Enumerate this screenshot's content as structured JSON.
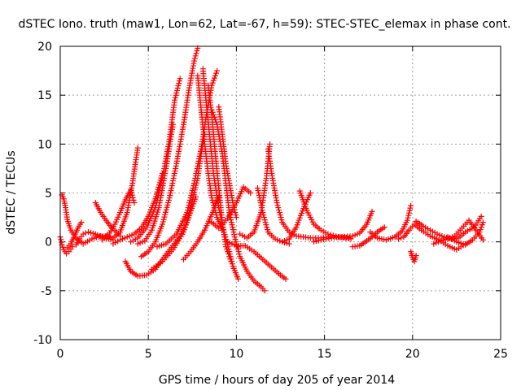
{
  "chart_data": {
    "type": "scatter",
    "title": "dSTEC Iono. truth (maw1, Lon=62, Lat=-67, h=59): STEC-STEC_elemax in phase cont.",
    "xlabel": "GPS time / hours of day 205 of year 2014",
    "ylabel": "dSTEC  / TECUs",
    "xlim": [
      0,
      25
    ],
    "ylim": [
      -10,
      20
    ],
    "xticks": [
      0,
      5,
      10,
      15,
      20,
      25
    ],
    "yticks": [
      -10,
      -5,
      0,
      5,
      10,
      15,
      20
    ],
    "grid": true,
    "marker": "plus",
    "color": "#ff0000",
    "arcs": [
      {
        "x": [
          0.0,
          0.1,
          0.2,
          0.35,
          0.5,
          0.7
        ],
        "y": [
          0.5,
          -0.3,
          -0.8,
          -1.2,
          -1.0,
          -0.5
        ]
      },
      {
        "x": [
          0.1,
          0.2,
          0.3,
          0.4,
          0.6,
          0.9,
          1.3,
          1.8,
          2.3,
          2.8
        ],
        "y": [
          4.8,
          4.4,
          3.5,
          2.3,
          1.2,
          0.4,
          -0.2,
          0.3,
          0.6,
          0.5
        ]
      },
      {
        "x": [
          0.4,
          0.6,
          0.8,
          1.0,
          1.2
        ],
        "y": [
          -0.6,
          -0.2,
          0.6,
          1.4,
          2.0
        ]
      },
      {
        "x": [
          0.9,
          1.1,
          1.3,
          1.6,
          2.0,
          2.5,
          3.0
        ],
        "y": [
          -0.3,
          0.3,
          0.8,
          1.0,
          0.8,
          0.4,
          0.2
        ]
      },
      {
        "x": [
          2.0,
          2.3,
          2.6,
          2.9,
          3.2,
          3.4
        ],
        "y": [
          4.0,
          3.0,
          2.2,
          1.5,
          1.0,
          0.6
        ]
      },
      {
        "x": [
          2.4,
          2.8,
          3.1,
          3.4,
          3.7,
          4.0,
          4.2
        ],
        "y": [
          0.2,
          0.9,
          1.8,
          3.0,
          4.3,
          5.3,
          4.0
        ]
      },
      {
        "x": [
          2.6,
          3.0,
          3.4,
          3.8,
          4.1,
          4.4
        ],
        "y": [
          0.6,
          0.4,
          1.0,
          3.0,
          6.0,
          9.6
        ]
      },
      {
        "x": [
          3.0,
          3.4,
          3.8,
          4.2,
          4.6,
          5.0,
          5.4,
          5.8
        ],
        "y": [
          -0.2,
          0.2,
          0.5,
          0.8,
          1.4,
          2.6,
          4.4,
          7.0
        ]
      },
      {
        "x": [
          3.7,
          4.0,
          4.4,
          4.9,
          5.4,
          5.8,
          6.3,
          6.8,
          7.2,
          7.7
        ],
        "y": [
          -2.0,
          -3.0,
          -3.5,
          -3.4,
          -2.8,
          -1.8,
          -0.6,
          0.6,
          2.0,
          4.6
        ]
      },
      {
        "x": [
          4.0,
          4.4,
          4.9,
          5.4,
          5.8,
          6.2,
          6.5,
          6.8
        ],
        "y": [
          0.0,
          0.4,
          1.5,
          3.5,
          6.5,
          10.5,
          14.5,
          16.7
        ]
      },
      {
        "x": [
          4.4,
          4.8,
          5.2,
          5.6,
          6.0,
          6.4
        ],
        "y": [
          -0.2,
          0.1,
          1.2,
          3.5,
          7.5,
          12.0
        ]
      },
      {
        "x": [
          4.6,
          5.0,
          5.4,
          5.8,
          6.2,
          6.6,
          7.0,
          7.3,
          7.6,
          7.8
        ],
        "y": [
          -1.5,
          -1.0,
          0.0,
          1.8,
          4.5,
          8.0,
          12.0,
          15.5,
          18.5,
          19.8
        ]
      },
      {
        "x": [
          5.2,
          5.8,
          6.4,
          7.0,
          7.4,
          7.8,
          8.0,
          8.2
        ],
        "y": [
          -2.8,
          -2.0,
          -0.8,
          1.0,
          3.4,
          6.5,
          9.0,
          11.0
        ]
      },
      {
        "x": [
          5.5,
          6.0,
          6.6,
          7.2,
          7.6,
          8.0,
          8.3,
          8.6,
          8.9
        ],
        "y": [
          -0.5,
          -0.2,
          0.8,
          3.0,
          6.0,
          9.5,
          13.0,
          16.0,
          17.5
        ]
      },
      {
        "x": [
          7.8,
          8.0,
          8.2,
          8.4,
          8.6,
          8.9,
          9.2
        ],
        "y": [
          17.0,
          13.5,
          10.0,
          7.0,
          4.5,
          2.5,
          1.2
        ]
      },
      {
        "x": [
          8.1,
          8.3,
          8.5,
          8.7,
          9.0,
          9.3,
          9.6,
          9.8,
          10.1
        ],
        "y": [
          17.7,
          14.0,
          10.5,
          7.0,
          3.5,
          1.0,
          -1.0,
          -2.5,
          -3.8
        ]
      },
      {
        "x": [
          8.4,
          8.6,
          8.8,
          9.0,
          9.2,
          9.4,
          9.7
        ],
        "y": [
          16.0,
          13.0,
          9.0,
          5.5,
          2.0,
          -0.5,
          -2.0
        ]
      },
      {
        "x": [
          8.6,
          8.9,
          9.2,
          9.4,
          9.6,
          9.9,
          10.2,
          10.6,
          11.0,
          11.4,
          11.6
        ],
        "y": [
          13.5,
          12.0,
          9.0,
          6.0,
          3.0,
          0.5,
          -1.5,
          -3.0,
          -4.0,
          -4.6,
          -5.0
        ]
      },
      {
        "x": [
          9.0,
          9.2,
          9.4,
          9.6,
          9.8,
          10.0
        ],
        "y": [
          13.8,
          11.0,
          8.0,
          6.0,
          4.0,
          2.5
        ]
      },
      {
        "x": [
          7.0,
          7.4,
          7.8,
          8.2,
          8.6,
          9.0
        ],
        "y": [
          -1.8,
          -1.0,
          0.0,
          1.2,
          2.8,
          4.6
        ]
      },
      {
        "x": [
          8.6,
          9.0,
          9.5,
          10.0,
          10.4,
          10.8
        ],
        "y": [
          2.0,
          1.4,
          2.4,
          4.0,
          5.6,
          5.0
        ]
      },
      {
        "x": [
          9.5,
          10.0,
          10.5,
          11.0,
          11.5,
          12.0,
          12.5,
          12.8
        ],
        "y": [
          0.0,
          -0.4,
          -0.4,
          -1.0,
          -1.8,
          -2.6,
          -3.4,
          -3.8
        ]
      },
      {
        "x": [
          10.2,
          10.6,
          11.0,
          11.4,
          11.7,
          11.9
        ],
        "y": [
          0.8,
          0.4,
          1.0,
          3.0,
          6.5,
          10.0
        ]
      },
      {
        "x": [
          11.8,
          12.0,
          12.3,
          12.6,
          13.0,
          13.4,
          13.8,
          14.2,
          14.8,
          15.5,
          16.5
        ],
        "y": [
          9.5,
          7.0,
          4.0,
          2.0,
          1.0,
          0.6,
          0.5,
          0.4,
          0.4,
          0.6,
          0.3
        ]
      },
      {
        "x": [
          11.2,
          11.5,
          11.8,
          12.2,
          12.6,
          13.0
        ],
        "y": [
          5.5,
          3.0,
          1.0,
          0.3,
          0.0,
          -0.2
        ]
      },
      {
        "x": [
          12.6,
          13.0,
          13.4,
          13.8,
          14.2
        ],
        "y": [
          0.0,
          0.3,
          1.5,
          3.4,
          5.0
        ]
      },
      {
        "x": [
          13.6,
          14.0,
          14.4,
          14.8,
          15.2,
          15.8,
          16.4
        ],
        "y": [
          5.2,
          3.2,
          1.8,
          1.2,
          0.8,
          0.5,
          0.4
        ]
      },
      {
        "x": [
          14.4,
          14.8,
          15.4,
          16.0,
          16.6,
          17.0,
          17.4,
          17.7
        ],
        "y": [
          0.0,
          0.2,
          0.4,
          0.5,
          0.6,
          0.9,
          1.8,
          3.1
        ]
      },
      {
        "x": [
          16.6,
          17.0,
          17.4,
          17.7,
          18.0,
          18.4
        ],
        "y": [
          -0.5,
          -0.4,
          0.1,
          0.5,
          1.0,
          1.5
        ]
      },
      {
        "x": [
          17.6,
          18.0,
          18.5,
          19.0,
          19.4,
          19.7,
          19.9
        ],
        "y": [
          1.0,
          0.4,
          0.2,
          0.5,
          1.1,
          2.2,
          3.7
        ]
      },
      {
        "x": [
          19.9,
          20.0,
          20.1,
          20.2
        ],
        "y": [
          -1.0,
          -1.6,
          -2.0,
          -1.4
        ]
      },
      {
        "x": [
          19.2,
          19.5,
          19.8,
          20.1,
          20.5,
          21.0,
          21.5,
          22.0,
          22.5,
          23.0
        ],
        "y": [
          0.3,
          0.5,
          1.2,
          1.8,
          1.2,
          0.6,
          0.2,
          -0.4,
          -0.8,
          -0.2
        ]
      },
      {
        "x": [
          20.2,
          20.6,
          21.0,
          21.4,
          21.8,
          22.2,
          22.6,
          23.0,
          23.5,
          23.9
        ],
        "y": [
          2.1,
          1.6,
          1.2,
          0.8,
          0.5,
          0.3,
          0.4,
          1.0,
          1.5,
          2.6
        ]
      },
      {
        "x": [
          21.2,
          21.6,
          22.0,
          22.4,
          22.8,
          23.2,
          23.6,
          24.0
        ],
        "y": [
          -0.2,
          0.1,
          0.3,
          0.6,
          1.4,
          2.2,
          1.2,
          0.2
        ]
      },
      {
        "x": [
          22.0,
          22.5,
          23.0,
          23.4,
          23.8,
          24.0
        ],
        "y": [
          0.5,
          0.0,
          -0.3,
          0.2,
          1.0,
          2.0
        ]
      }
    ]
  }
}
